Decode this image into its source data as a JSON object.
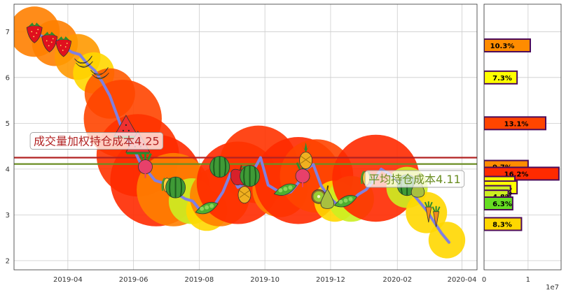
{
  "chart_data": {
    "type": "line",
    "main": {
      "x_ticks": [
        "2019-04",
        "2019-06",
        "2019-08",
        "2019-10",
        "2019-12",
        "2020-02",
        "2020-04"
      ],
      "y_ticks": [
        "2",
        "3",
        "4",
        "5",
        "6",
        "7"
      ],
      "ylim": [
        1.8,
        7.6
      ],
      "xlim": [
        "2019-02-10",
        "2020-04-15"
      ],
      "grid": true,
      "price_series": [
        {
          "x": "2019-03-01",
          "y": 7.0
        },
        {
          "x": "2019-03-08",
          "y": 6.9
        },
        {
          "x": "2019-03-15",
          "y": 6.75
        },
        {
          "x": "2019-03-22",
          "y": 6.8
        },
        {
          "x": "2019-03-29",
          "y": 6.65
        },
        {
          "x": "2019-04-05",
          "y": 6.55
        },
        {
          "x": "2019-04-12",
          "y": 6.5
        },
        {
          "x": "2019-04-19",
          "y": 6.3
        },
        {
          "x": "2019-04-26",
          "y": 6.15
        },
        {
          "x": "2019-05-03",
          "y": 5.9
        },
        {
          "x": "2019-05-10",
          "y": 5.6
        },
        {
          "x": "2019-05-17",
          "y": 5.15
        },
        {
          "x": "2019-05-24",
          "y": 4.7
        },
        {
          "x": "2019-05-31",
          "y": 4.5
        },
        {
          "x": "2019-06-07",
          "y": 4.15
        },
        {
          "x": "2019-06-14",
          "y": 3.95
        },
        {
          "x": "2019-06-21",
          "y": 3.75
        },
        {
          "x": "2019-06-28",
          "y": 3.7
        },
        {
          "x": "2019-07-05",
          "y": 3.55
        },
        {
          "x": "2019-07-12",
          "y": 3.45
        },
        {
          "x": "2019-07-19",
          "y": 3.35
        },
        {
          "x": "2019-07-26",
          "y": 3.3
        },
        {
          "x": "2019-08-02",
          "y": 3.1
        },
        {
          "x": "2019-08-09",
          "y": 3.15
        },
        {
          "x": "2019-08-16",
          "y": 3.25
        },
        {
          "x": "2019-08-23",
          "y": 3.5
        },
        {
          "x": "2019-08-30",
          "y": 3.9
        },
        {
          "x": "2019-09-06",
          "y": 3.6
        },
        {
          "x": "2019-09-13",
          "y": 3.7
        },
        {
          "x": "2019-09-20",
          "y": 3.95
        },
        {
          "x": "2019-09-27",
          "y": 4.25
        },
        {
          "x": "2019-10-04",
          "y": 3.65
        },
        {
          "x": "2019-10-11",
          "y": 3.55
        },
        {
          "x": "2019-10-18",
          "y": 3.45
        },
        {
          "x": "2019-10-25",
          "y": 3.5
        },
        {
          "x": "2019-11-01",
          "y": 3.7
        },
        {
          "x": "2019-11-08",
          "y": 4.0
        },
        {
          "x": "2019-11-15",
          "y": 4.1
        },
        {
          "x": "2019-11-22",
          "y": 3.65
        },
        {
          "x": "2019-11-29",
          "y": 3.4
        },
        {
          "x": "2019-12-06",
          "y": 3.25
        },
        {
          "x": "2019-12-13",
          "y": 3.2
        },
        {
          "x": "2019-12-20",
          "y": 3.3
        },
        {
          "x": "2019-12-27",
          "y": 3.45
        },
        {
          "x": "2020-01-03",
          "y": 3.55
        },
        {
          "x": "2020-01-10",
          "y": 3.75
        },
        {
          "x": "2020-01-17",
          "y": 4.0
        },
        {
          "x": "2020-01-24",
          "y": 3.9
        },
        {
          "x": "2020-02-07",
          "y": 3.6
        },
        {
          "x": "2020-02-14",
          "y": 3.5
        },
        {
          "x": "2020-02-21",
          "y": 3.3
        },
        {
          "x": "2020-02-28",
          "y": 3.1
        },
        {
          "x": "2020-03-06",
          "y": 2.85
        },
        {
          "x": "2020-03-13",
          "y": 2.6
        },
        {
          "x": "2020-03-20",
          "y": 2.4
        }
      ],
      "volume_bubbles": [
        {
          "x": "2019-03-01",
          "y": 7.0,
          "size": 0.55,
          "color": "#FF7F00"
        },
        {
          "x": "2019-03-20",
          "y": 6.75,
          "size": 0.5,
          "color": "#FF7F00"
        },
        {
          "x": "2019-04-10",
          "y": 6.45,
          "size": 0.5,
          "color": "#FF9900"
        },
        {
          "x": "2019-04-25",
          "y": 6.1,
          "size": 0.45,
          "color": "#FFD700"
        },
        {
          "x": "2019-05-10",
          "y": 5.65,
          "size": 0.55,
          "color": "#FF5A00"
        },
        {
          "x": "2019-05-22",
          "y": 5.1,
          "size": 0.85,
          "color": "#FF4500"
        },
        {
          "x": "2019-06-05",
          "y": 4.3,
          "size": 0.9,
          "color": "#FF3300"
        },
        {
          "x": "2019-06-22",
          "y": 3.75,
          "size": 1.0,
          "color": "#FF2A00"
        },
        {
          "x": "2019-07-08",
          "y": 3.55,
          "size": 0.8,
          "color": "#FF7F00"
        },
        {
          "x": "2019-07-25",
          "y": 3.3,
          "size": 0.5,
          "color": "#CCEE22"
        },
        {
          "x": "2019-08-08",
          "y": 3.1,
          "size": 0.45,
          "color": "#FFD700"
        },
        {
          "x": "2019-08-20",
          "y": 3.4,
          "size": 0.65,
          "color": "#FF7F00"
        },
        {
          "x": "2019-09-06",
          "y": 3.7,
          "size": 0.9,
          "color": "#FF2A00"
        },
        {
          "x": "2019-09-25",
          "y": 4.1,
          "size": 0.85,
          "color": "#FF3300"
        },
        {
          "x": "2019-10-15",
          "y": 3.55,
          "size": 0.6,
          "color": "#FF7F00"
        },
        {
          "x": "2019-11-01",
          "y": 3.75,
          "size": 0.95,
          "color": "#FF2A00"
        },
        {
          "x": "2019-11-18",
          "y": 3.85,
          "size": 0.8,
          "color": "#FF4500"
        },
        {
          "x": "2019-12-05",
          "y": 3.3,
          "size": 0.45,
          "color": "#FFD700"
        },
        {
          "x": "2019-12-20",
          "y": 3.35,
          "size": 0.5,
          "color": "#CCEE22"
        },
        {
          "x": "2020-01-12",
          "y": 3.8,
          "size": 0.95,
          "color": "#FF2A00"
        },
        {
          "x": "2020-02-10",
          "y": 3.6,
          "size": 0.45,
          "color": "#CCEE22"
        },
        {
          "x": "2020-02-28",
          "y": 3.05,
          "size": 0.45,
          "color": "#FFD700"
        },
        {
          "x": "2020-03-18",
          "y": 2.45,
          "size": 0.4,
          "color": "#FFD700"
        }
      ],
      "hlines": [
        {
          "label": "成交量加权持仓成本4.25",
          "y": 4.25,
          "color": "#B22222"
        },
        {
          "label": "平均持仓成本4.11",
          "y": 4.11,
          "color": "#6B8E23"
        }
      ],
      "annotations": [
        {
          "text": "成交量加权持仓成本4.25",
          "x": "2019-02-25",
          "y": 4.6,
          "color": "#B22222"
        },
        {
          "text": "平均持仓成本4.11",
          "x": "2020-01-02",
          "y": 3.77,
          "color": "#6B8E23"
        }
      ]
    },
    "side": {
      "x_ticks": [
        "0",
        "1"
      ],
      "x_multiplier": "1e7",
      "xlim": [
        0,
        1.75
      ],
      "bars": [
        {
          "price": 6.7,
          "value": 1.05,
          "label": "10.3%",
          "color": "#FF8C00"
        },
        {
          "price": 6.0,
          "value": 0.75,
          "label": "7.3%",
          "color": "#FFFF00"
        },
        {
          "price": 5.0,
          "value": 1.4,
          "label": "13.1%",
          "color": "#FF4500"
        },
        {
          "price": 4.05,
          "value": 1.0,
          "label": "9.7%",
          "color": "#FF8C00"
        },
        {
          "price": 3.9,
          "value": 1.7,
          "label": "16.2%",
          "color": "#FF2A00"
        },
        {
          "price": 3.7,
          "value": 0.7,
          "label": "6.9%",
          "color": "#FFFF00"
        },
        {
          "price": 3.6,
          "value": 0.75,
          "label": "7.1%",
          "color": "#FFFF00"
        },
        {
          "price": 3.5,
          "value": 0.6,
          "label": "5.2%",
          "color": "#CCEE22"
        },
        {
          "price": 3.4,
          "value": 0.55,
          "label": "4.8%",
          "color": "#CCEE22"
        },
        {
          "price": 3.25,
          "value": 0.65,
          "label": "6.3%",
          "color": "#66DD22"
        },
        {
          "price": 2.8,
          "value": 0.85,
          "label": "8.3%",
          "color": "#FFD700"
        }
      ]
    },
    "fruit_icons": [
      {
        "x": "2019-03-01",
        "y": 7.0,
        "icon": "strawberry-icon"
      },
      {
        "x": "2019-03-15",
        "y": 6.8,
        "icon": "strawberry-icon"
      },
      {
        "x": "2019-03-28",
        "y": 6.7,
        "icon": "strawberry-icon"
      },
      {
        "x": "2019-04-15",
        "y": 6.35,
        "icon": "banana-icon"
      },
      {
        "x": "2019-04-30",
        "y": 6.1,
        "icon": "banana-icon"
      },
      {
        "x": "2019-05-25",
        "y": 4.9,
        "icon": "watermelon-slice-icon"
      },
      {
        "x": "2019-06-05",
        "y": 4.55,
        "icon": "watermelon-slice-icon"
      },
      {
        "x": "2019-06-12",
        "y": 4.05,
        "icon": "radish-icon"
      },
      {
        "x": "2019-07-02",
        "y": 3.65,
        "icon": "corn-icon"
      },
      {
        "x": "2019-07-10",
        "y": 3.6,
        "icon": "melon-icon"
      },
      {
        "x": "2019-08-08",
        "y": 3.15,
        "icon": "peapod-icon"
      },
      {
        "x": "2019-08-20",
        "y": 4.05,
        "icon": "melon-icon"
      },
      {
        "x": "2019-09-08",
        "y": 3.85,
        "icon": "apple-icon"
      },
      {
        "x": "2019-09-12",
        "y": 3.5,
        "icon": "pineapple-icon"
      },
      {
        "x": "2019-09-17",
        "y": 3.85,
        "icon": "melon-icon"
      },
      {
        "x": "2019-10-20",
        "y": 3.55,
        "icon": "peapod-icon"
      },
      {
        "x": "2019-11-05",
        "y": 3.85,
        "icon": "radish-icon"
      },
      {
        "x": "2019-11-08",
        "y": 4.25,
        "icon": "pineapple-icon"
      },
      {
        "x": "2019-11-20",
        "y": 3.4,
        "icon": "kiwi-icon"
      },
      {
        "x": "2019-11-28",
        "y": 3.35,
        "icon": "pear-icon"
      },
      {
        "x": "2019-12-15",
        "y": 3.3,
        "icon": "peapod-icon"
      },
      {
        "x": "2020-01-03",
        "y": 3.8,
        "icon": "corn-icon"
      },
      {
        "x": "2020-02-10",
        "y": 3.65,
        "icon": "melon-icon"
      },
      {
        "x": "2020-02-20",
        "y": 3.6,
        "icon": "pear-icon"
      },
      {
        "x": "2020-03-01",
        "y": 3.05,
        "icon": "carrot-icon"
      },
      {
        "x": "2020-03-08",
        "y": 2.95,
        "icon": "carrot-icon"
      }
    ],
    "colors": {
      "price_line": "#8080E0",
      "grid": "#CCCCCC",
      "frame": "#333333"
    }
  }
}
